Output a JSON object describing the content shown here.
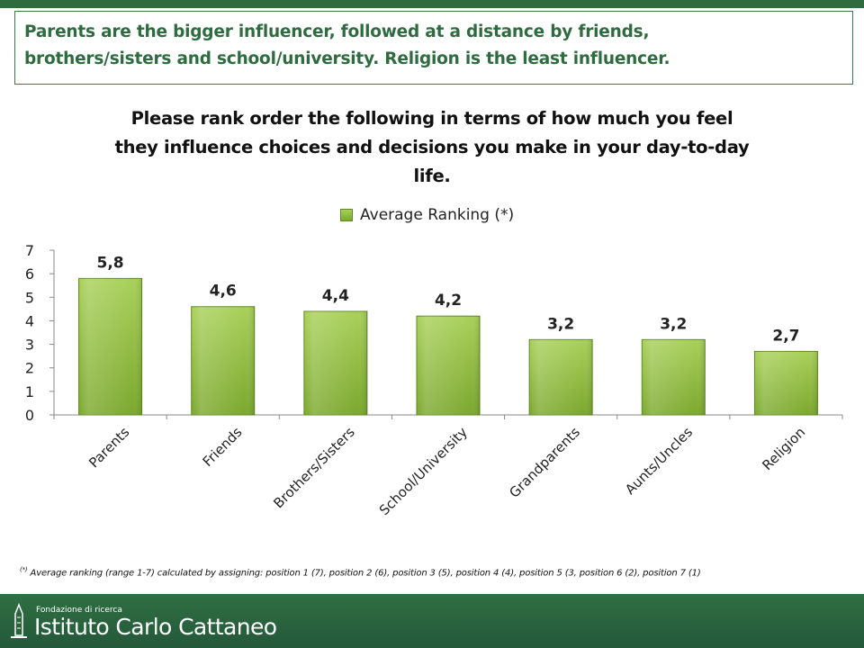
{
  "headline": {
    "line1": "Parents are the bigger influencer, followed at a distance by friends,",
    "line2": "brothers/sisters and school/university. Religion is the least influencer."
  },
  "footnote": {
    "marker": "(*)",
    "text": " Average ranking (range 1-7) calculated by assigning: position 1 (7), position 2 (6), position 3 (5), position 4 (4), position 5 (3, position 6 (2), position 7 (1)"
  },
  "footer": {
    "logo_small": "Fondazione di ricerca",
    "logo_name": "Istituto Carlo Cattaneo"
  },
  "colors": {
    "brand_green": "#2e6b3f",
    "bar_top": "#a9d05a",
    "bar_bottom": "#7ba82e"
  },
  "chart_data": {
    "type": "bar",
    "title_lines": [
      "Please rank order the following in terms of how much you feel",
      "they influence choices and decisions you make in your day-to-day",
      "life."
    ],
    "categories": [
      "Parents",
      "Friends",
      "Brothers/Sisters",
      "School/University",
      "Grandparents",
      "Aunts/Uncles",
      "Religion"
    ],
    "series": [
      {
        "name": "Average Ranking (*)",
        "values": [
          5.8,
          4.6,
          4.4,
          4.2,
          3.2,
          3.2,
          2.7
        ],
        "labels": [
          "5,8",
          "4,6",
          "4,4",
          "4,2",
          "3,2",
          "3,2",
          "2,7"
        ]
      }
    ],
    "ylim": [
      0,
      7
    ],
    "yticks": [
      "0",
      "1",
      "2",
      "3",
      "4",
      "5",
      "6",
      "7"
    ],
    "grid": false,
    "legend": "top"
  }
}
